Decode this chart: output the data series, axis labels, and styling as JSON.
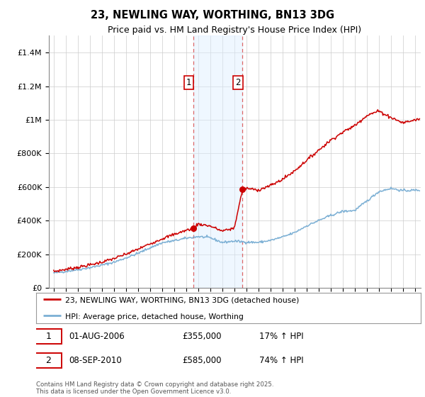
{
  "title": "23, NEWLING WAY, WORTHING, BN13 3DG",
  "subtitle": "Price paid vs. HM Land Registry's House Price Index (HPI)",
  "ylabel_ticks": [
    "£0",
    "£200K",
    "£400K",
    "£600K",
    "£800K",
    "£1M",
    "£1.2M",
    "£1.4M"
  ],
  "ytick_values": [
    0,
    200000,
    400000,
    600000,
    800000,
    1000000,
    1200000,
    1400000
  ],
  "ylim": [
    0,
    1500000
  ],
  "xlim_start": 1994.6,
  "xlim_end": 2025.5,
  "line1_color": "#cc0000",
  "line2_color": "#7bafd4",
  "marker1_date": 2006.583,
  "marker1_price": 355000,
  "marker1_label": "1",
  "marker2_date": 2010.69,
  "marker2_price": 585000,
  "marker2_label": "2",
  "legend_line1": "23, NEWLING WAY, WORTHING, BN13 3DG (detached house)",
  "legend_line2": "HPI: Average price, detached house, Worthing",
  "footnote": "Contains HM Land Registry data © Crown copyright and database right 2025.\nThis data is licensed under the Open Government Licence v3.0.",
  "background_color": "#ffffff",
  "grid_color": "#cccccc",
  "shade_color": "#ddeeff",
  "shade_alpha": 0.45,
  "vline_color": "#dd6666",
  "label_box_color": "#cc0000"
}
